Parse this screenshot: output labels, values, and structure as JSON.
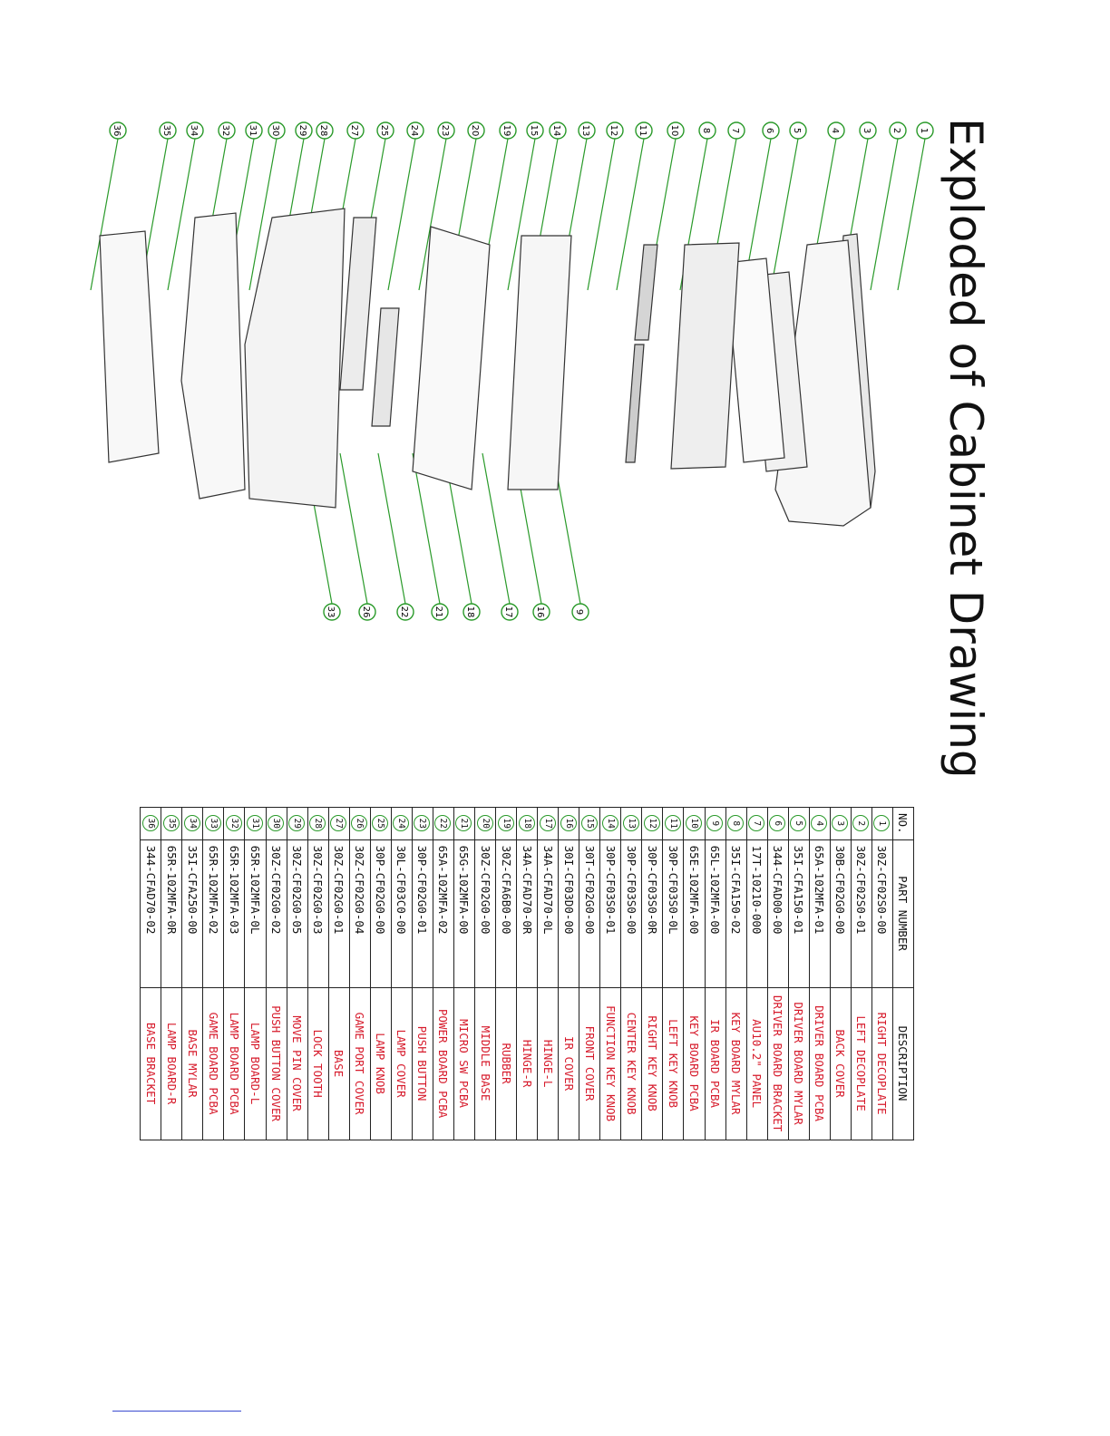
{
  "title": "Exploded of Cabinet Drawing",
  "callouts": [
    "1",
    "2",
    "3",
    "4",
    "5",
    "6",
    "7",
    "8",
    "10",
    "11",
    "12",
    "13",
    "14",
    "15",
    "19",
    "20",
    "23",
    "24",
    "25",
    "27",
    "28",
    "29",
    "30",
    "31",
    "32",
    "34",
    "35",
    "36",
    "9",
    "16",
    "17",
    "18",
    "21",
    "22",
    "26",
    "33"
  ],
  "table": {
    "headers": {
      "no": "NO.",
      "part_number": "PART NUMBER",
      "description": "DESCRIPTION"
    },
    "rows": [
      {
        "no": "1",
        "part_number": "30Z-CF02S0-00",
        "description": "RIGHT DECOPLATE"
      },
      {
        "no": "2",
        "part_number": "30Z-CF02S0-01",
        "description": "LEFT DECOPLATE"
      },
      {
        "no": "3",
        "part_number": "30B-CF02G0-00",
        "description": "BACK COVER"
      },
      {
        "no": "4",
        "part_number": "65A-102MFA-01",
        "description": "DRIVER BOARD PCBA"
      },
      {
        "no": "5",
        "part_number": "35I-CFA150-01",
        "description": "DRIVER BOARD MYLAR"
      },
      {
        "no": "6",
        "part_number": "344-CFAD00-00",
        "description": "DRIVER BOARD BRACKET"
      },
      {
        "no": "7",
        "part_number": "17T-10210-000",
        "description": "AU10.2\" PANEL"
      },
      {
        "no": "8",
        "part_number": "35I-CFA150-02",
        "description": "KEY BOARD MYLAR"
      },
      {
        "no": "9",
        "part_number": "65L-102MFA-00",
        "description": "IR BOARD PCBA"
      },
      {
        "no": "10",
        "part_number": "65E-102MFA-00",
        "description": "KEY BOARD PCBA"
      },
      {
        "no": "11",
        "part_number": "30P-CF03S0-0L",
        "description": "LEFT KEY KNOB"
      },
      {
        "no": "12",
        "part_number": "30P-CF03S0-0R",
        "description": "RIGHT KEY KNOB"
      },
      {
        "no": "13",
        "part_number": "30P-CF03S0-00",
        "description": "CENTER KEY KNOB"
      },
      {
        "no": "14",
        "part_number": "30P-CF03S0-01",
        "description": "FUNCTION KEY KNOB"
      },
      {
        "no": "15",
        "part_number": "30T-CF02G0-00",
        "description": "FRONT COVER"
      },
      {
        "no": "16",
        "part_number": "30I-CF03D0-00",
        "description": "IR COVER"
      },
      {
        "no": "17",
        "part_number": "34A-CFAD70-0L",
        "description": "HINGE-L"
      },
      {
        "no": "18",
        "part_number": "34A-CFAD70-0R",
        "description": "HINGE-R"
      },
      {
        "no": "19",
        "part_number": "30Z-CFA6B0-00",
        "description": "RUBBER"
      },
      {
        "no": "20",
        "part_number": "30Z-CF02G0-00",
        "description": "MIDDLE BASE"
      },
      {
        "no": "21",
        "part_number": "65G-102MFA-00",
        "description": "MICRO SW PCBA"
      },
      {
        "no": "22",
        "part_number": "65A-102MFA-02",
        "description": "POWER BOARD PCBA"
      },
      {
        "no": "23",
        "part_number": "30P-CF02G0-01",
        "description": "PUSH BUTTON"
      },
      {
        "no": "24",
        "part_number": "30L-CF03C0-00",
        "description": "LAMP COVER"
      },
      {
        "no": "25",
        "part_number": "30P-CF02G0-00",
        "description": "LAMP KNOB"
      },
      {
        "no": "26",
        "part_number": "30Z-CF02G0-04",
        "description": "GAME PORT COVER"
      },
      {
        "no": "27",
        "part_number": "30Z-CF02G0-01",
        "description": "BASE"
      },
      {
        "no": "28",
        "part_number": "30Z-CF02G0-03",
        "description": "LOCK TOOTH"
      },
      {
        "no": "29",
        "part_number": "30Z-CF02G0-05",
        "description": "MOVE PIN COVER"
      },
      {
        "no": "30",
        "part_number": "30Z-CF02G0-02",
        "description": "PUSH BUTTON COVER"
      },
      {
        "no": "31",
        "part_number": "65R-102MFA-0L",
        "description": "LAMP BOARD-L"
      },
      {
        "no": "32",
        "part_number": "65R-102MFA-03",
        "description": "LAMP BOARD PCBA"
      },
      {
        "no": "33",
        "part_number": "65R-102MFA-02",
        "description": "GAME BOARD PCBA"
      },
      {
        "no": "34",
        "part_number": "35I-CFA250-00",
        "description": "BASE MYLAR"
      },
      {
        "no": "35",
        "part_number": "65R-102MFA-0R",
        "description": "LAMP BOARD-R"
      },
      {
        "no": "36",
        "part_number": "344-CFAD70-02",
        "description": "BASE BRACKET"
      }
    ]
  },
  "colors": {
    "callout": "#2a9a2a",
    "description_text": "#d6192a",
    "footer_line": "#3a4bd0"
  }
}
